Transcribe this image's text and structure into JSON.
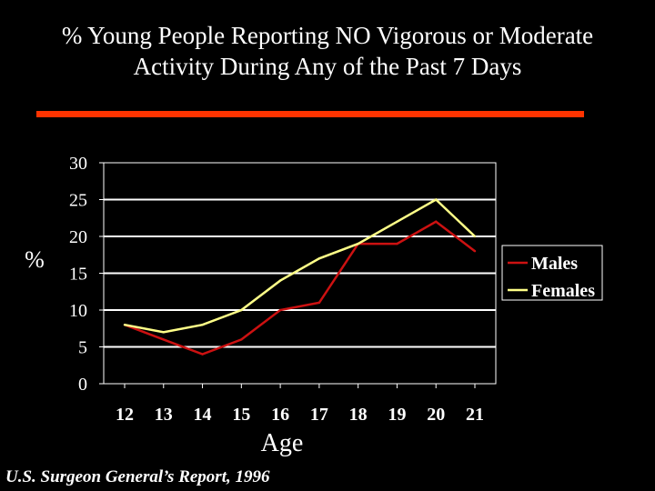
{
  "title_line1": "% Young People Reporting NO Vigorous or Moderate",
  "title_line2": "Activity During Any of the Past 7 Days",
  "source": "U.S. Surgeon General’s Report, 1996",
  "colors": {
    "background": "#000000",
    "accent_rule": "#ff3300",
    "males": "#cc1111",
    "females": "#ffff88",
    "grid": "#ffffff",
    "text": "#ffffff"
  },
  "chart_data": {
    "type": "line",
    "title": "% Young People Reporting NO Vigorous or Moderate Activity During Any of the Past 7 Days",
    "xlabel": "Age",
    "ylabel": "%",
    "categories": [
      "12",
      "13",
      "14",
      "15",
      "16",
      "17",
      "18",
      "19",
      "20",
      "21"
    ],
    "ylim": [
      0,
      30
    ],
    "yticks": [
      "0",
      "5",
      "10",
      "15",
      "20",
      "25",
      "30"
    ],
    "grid": true,
    "legend_position": "right",
    "series": [
      {
        "name": "Males",
        "color": "#cc1111",
        "values": [
          8,
          6,
          4,
          6,
          10,
          11,
          19,
          19,
          22,
          18
        ]
      },
      {
        "name": "Females",
        "color": "#ffff88",
        "values": [
          8,
          7,
          8,
          10,
          14,
          17,
          19,
          22,
          25,
          20
        ]
      }
    ]
  }
}
